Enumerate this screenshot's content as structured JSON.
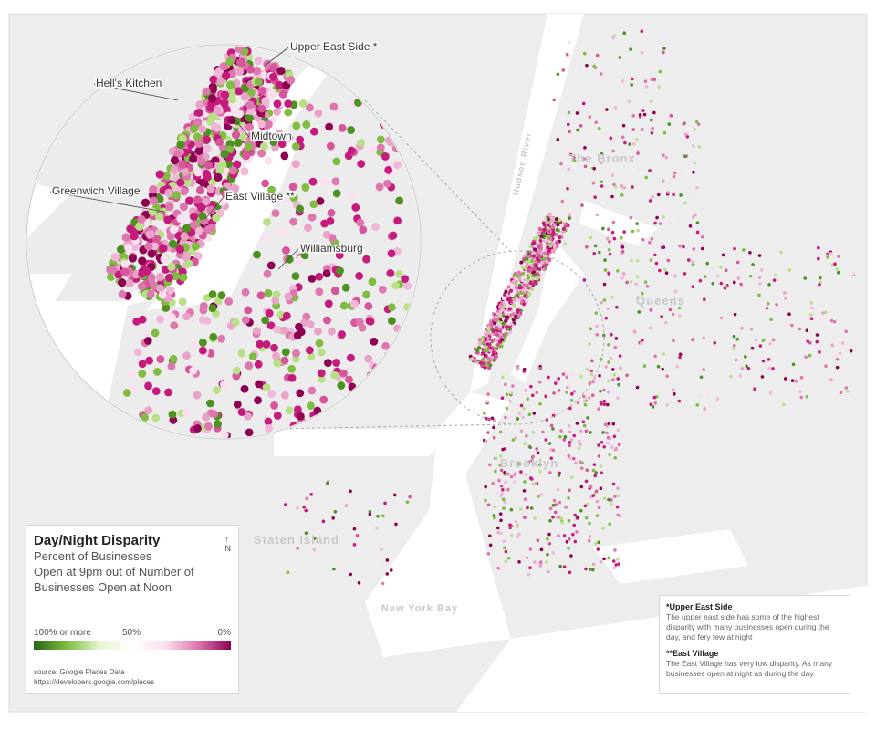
{
  "map": {
    "area_labels": [
      "The Bronx",
      "Queens",
      "Brooklyn",
      "Staten Island",
      "New York Bay",
      "Hudson River"
    ],
    "zoom_labels": [
      "Upper East Side *",
      "Hell's Kitchen",
      "Midtown",
      "Greenwich Village",
      "East Village **",
      "Williamsburg"
    ]
  },
  "legend": {
    "title": "Day/Night Disparity",
    "subtitle": [
      "Percent of Businesses",
      "Open at 9pm out of Number of",
      "Businesses Open at Noon"
    ],
    "scale_labels": [
      "100% or more",
      "50%",
      "0%"
    ],
    "north": "N",
    "source": [
      "source: Google Places Data",
      "https://developers.google.com/places"
    ]
  },
  "notes": [
    {
      "title": "*Upper East Side",
      "text": "The upper east side has some of the highest disparity with many businesses open during the day, and fery few at night"
    },
    {
      "title": "**East Village",
      "text": "The East Village has very low disparity. As many businesses open at night as during the day."
    }
  ]
}
